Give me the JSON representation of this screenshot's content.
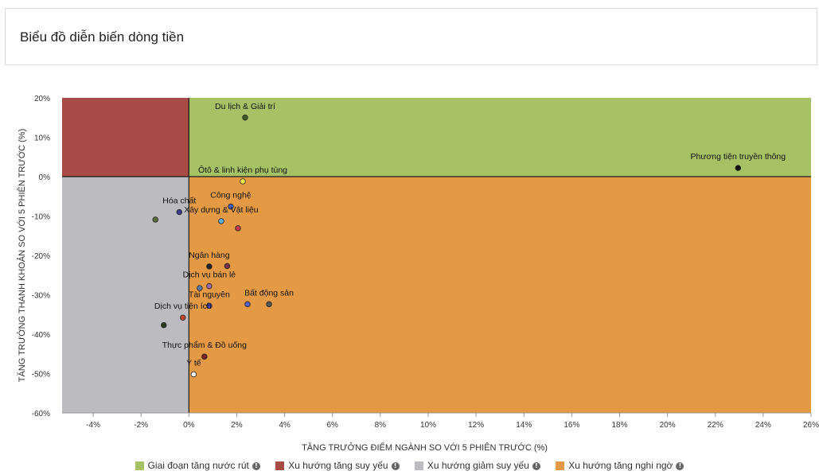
{
  "header": {
    "title": "Biểu đồ diễn biến dòng tiền"
  },
  "colors": {
    "accumulation": "#a6c265",
    "weakening_up": "#a84a45",
    "weakening_down": "#bcbcc0",
    "doubtful_up": "#e49a44"
  },
  "chart_data": {
    "type": "scatter",
    "xlabel": "TĂNG TRƯỞNG ĐIỂM NGÀNH SO VỚI 5 PHIÊN TRƯỚC (%)",
    "ylabel": "TĂNG TRƯỞNG THANH KHOẢN SO VỚI 5 PHIÊN TRƯỚC (%)",
    "xlim": [
      -5.3,
      26
    ],
    "ylim": [
      -60,
      20
    ],
    "xticks": [
      "-4%",
      "-2%",
      "0%",
      "2%",
      "4%",
      "6%",
      "8%",
      "10%",
      "12%",
      "14%",
      "16%",
      "18%",
      "20%",
      "22%",
      "24%",
      "26%"
    ],
    "xtick_values": [
      -4,
      -2,
      0,
      2,
      4,
      6,
      8,
      10,
      12,
      14,
      16,
      18,
      20,
      22,
      24,
      26
    ],
    "yticks": [
      "20%",
      "10%",
      "0%",
      "-10%",
      "-20%",
      "-30%",
      "-40%",
      "-50%",
      "-60%"
    ],
    "ytick_values": [
      20,
      10,
      0,
      -10,
      -20,
      -30,
      -40,
      -50,
      -60
    ],
    "points": [
      {
        "label": "Du lịch & Giải trí",
        "x": 2.35,
        "y": 15,
        "color": "#3f5a2a"
      },
      {
        "label": "Phương tiện truyền thông",
        "x": 22.95,
        "y": 2.2,
        "color": "#111111"
      },
      {
        "label": "Ôtô & linh kiện phụ tùng",
        "x": 2.25,
        "y": -1.2,
        "color": "#f2e94e"
      },
      {
        "label": "Công nghệ",
        "x": 1.75,
        "y": -7.6,
        "color": "#4a5fc4"
      },
      {
        "label": "Hóa chất",
        "x": -0.4,
        "y": -9,
        "color": "#3c3b8e"
      },
      {
        "label": "",
        "x": -1.4,
        "y": -10.9,
        "color": "#5a6b3a"
      },
      {
        "label": "Xây dựng & Vật liệu",
        "x": 1.35,
        "y": -11.3,
        "color": "#5bb0e8"
      },
      {
        "label": "",
        "x": 2.05,
        "y": -13.1,
        "color": "#c0394e"
      },
      {
        "label": "Ngân hàng",
        "x": 0.85,
        "y": -22.8,
        "color": "#222222"
      },
      {
        "label": "",
        "x": 1.6,
        "y": -22.7,
        "color": "#7a3048"
      },
      {
        "label": "Dịch vụ bán lẻ",
        "x": 0.85,
        "y": -27.8,
        "color": "#9a6aa8"
      },
      {
        "label": "",
        "x": 0.45,
        "y": -28.3,
        "color": "#5b7aa8"
      },
      {
        "label": "Tài nguyên",
        "x": 0.85,
        "y": -32.8,
        "color": "#4b4bd1"
      },
      {
        "label": "Bất động sản",
        "x": 3.35,
        "y": -32.4,
        "color": "#555555"
      },
      {
        "label": "",
        "x": 2.45,
        "y": -32.4,
        "color": "#5560c8"
      },
      {
        "label": "Dịch vụ tiện ích",
        "x": -0.25,
        "y": -35.8,
        "color": "#c0442f"
      },
      {
        "label": "",
        "x": -1.05,
        "y": -37.7,
        "color": "#2e3b22"
      },
      {
        "label": "Thực phẩm & Đồ uống",
        "x": 0.65,
        "y": -45.7,
        "color": "#7a1f1f"
      },
      {
        "label": "Y tế",
        "x": 0.2,
        "y": -50.2,
        "color": "#ffffff"
      }
    ],
    "quadrants": [
      {
        "name": "Giai đoạn tăng nước rút",
        "color": "#a6c265"
      },
      {
        "name": "Xu hướng tăng suy yếu",
        "color": "#a84a45"
      },
      {
        "name": "Xu hướng giảm suy yếu",
        "color": "#bcbcc0"
      },
      {
        "name": "Xu hướng tăng nghi ngờ",
        "color": "#e49a44"
      }
    ],
    "legend_position": "bottom",
    "grid": false
  }
}
